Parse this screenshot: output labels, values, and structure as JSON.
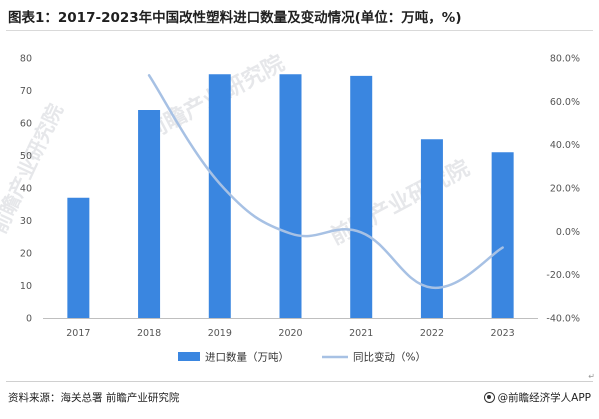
{
  "title": "图表1：2017-2023年中国改性塑料进口数量及变动情况(单位：万吨，%)",
  "source": "资料来源：海关总署 前瞻产业研究院",
  "brand": "@前瞻经济学人APP",
  "watermark": "前瞻产业研究院",
  "corner_mark": "↵",
  "colors": {
    "bar": "#3a86e0",
    "line": "#a7c1e4",
    "axis": "#bfbfbf"
  },
  "chart_data": {
    "type": "bar",
    "categories": [
      "2017",
      "2018",
      "2019",
      "2020",
      "2021",
      "2022",
      "2023"
    ],
    "series": [
      {
        "name": "进口数量（万吨）",
        "type": "bar",
        "axis": "left",
        "values": [
          37,
          64,
          75,
          75,
          74.5,
          55,
          51
        ]
      },
      {
        "name": "同比变动（%）",
        "type": "line",
        "axis": "right",
        "values": [
          null,
          72,
          22,
          -1,
          -0.5,
          -26,
          -7.5
        ]
      }
    ],
    "y_left": {
      "min": 0,
      "max": 80,
      "ticks": [
        "0",
        "10",
        "20",
        "30",
        "40",
        "50",
        "60",
        "70",
        "80"
      ]
    },
    "y_right": {
      "min": -40,
      "max": 80,
      "ticks": [
        "-40.0%",
        "-20.0%",
        "0.0%",
        "20.0%",
        "40.0%",
        "60.0%",
        "80.0%"
      ]
    },
    "grid": false,
    "legend_position": "bottom-center"
  }
}
